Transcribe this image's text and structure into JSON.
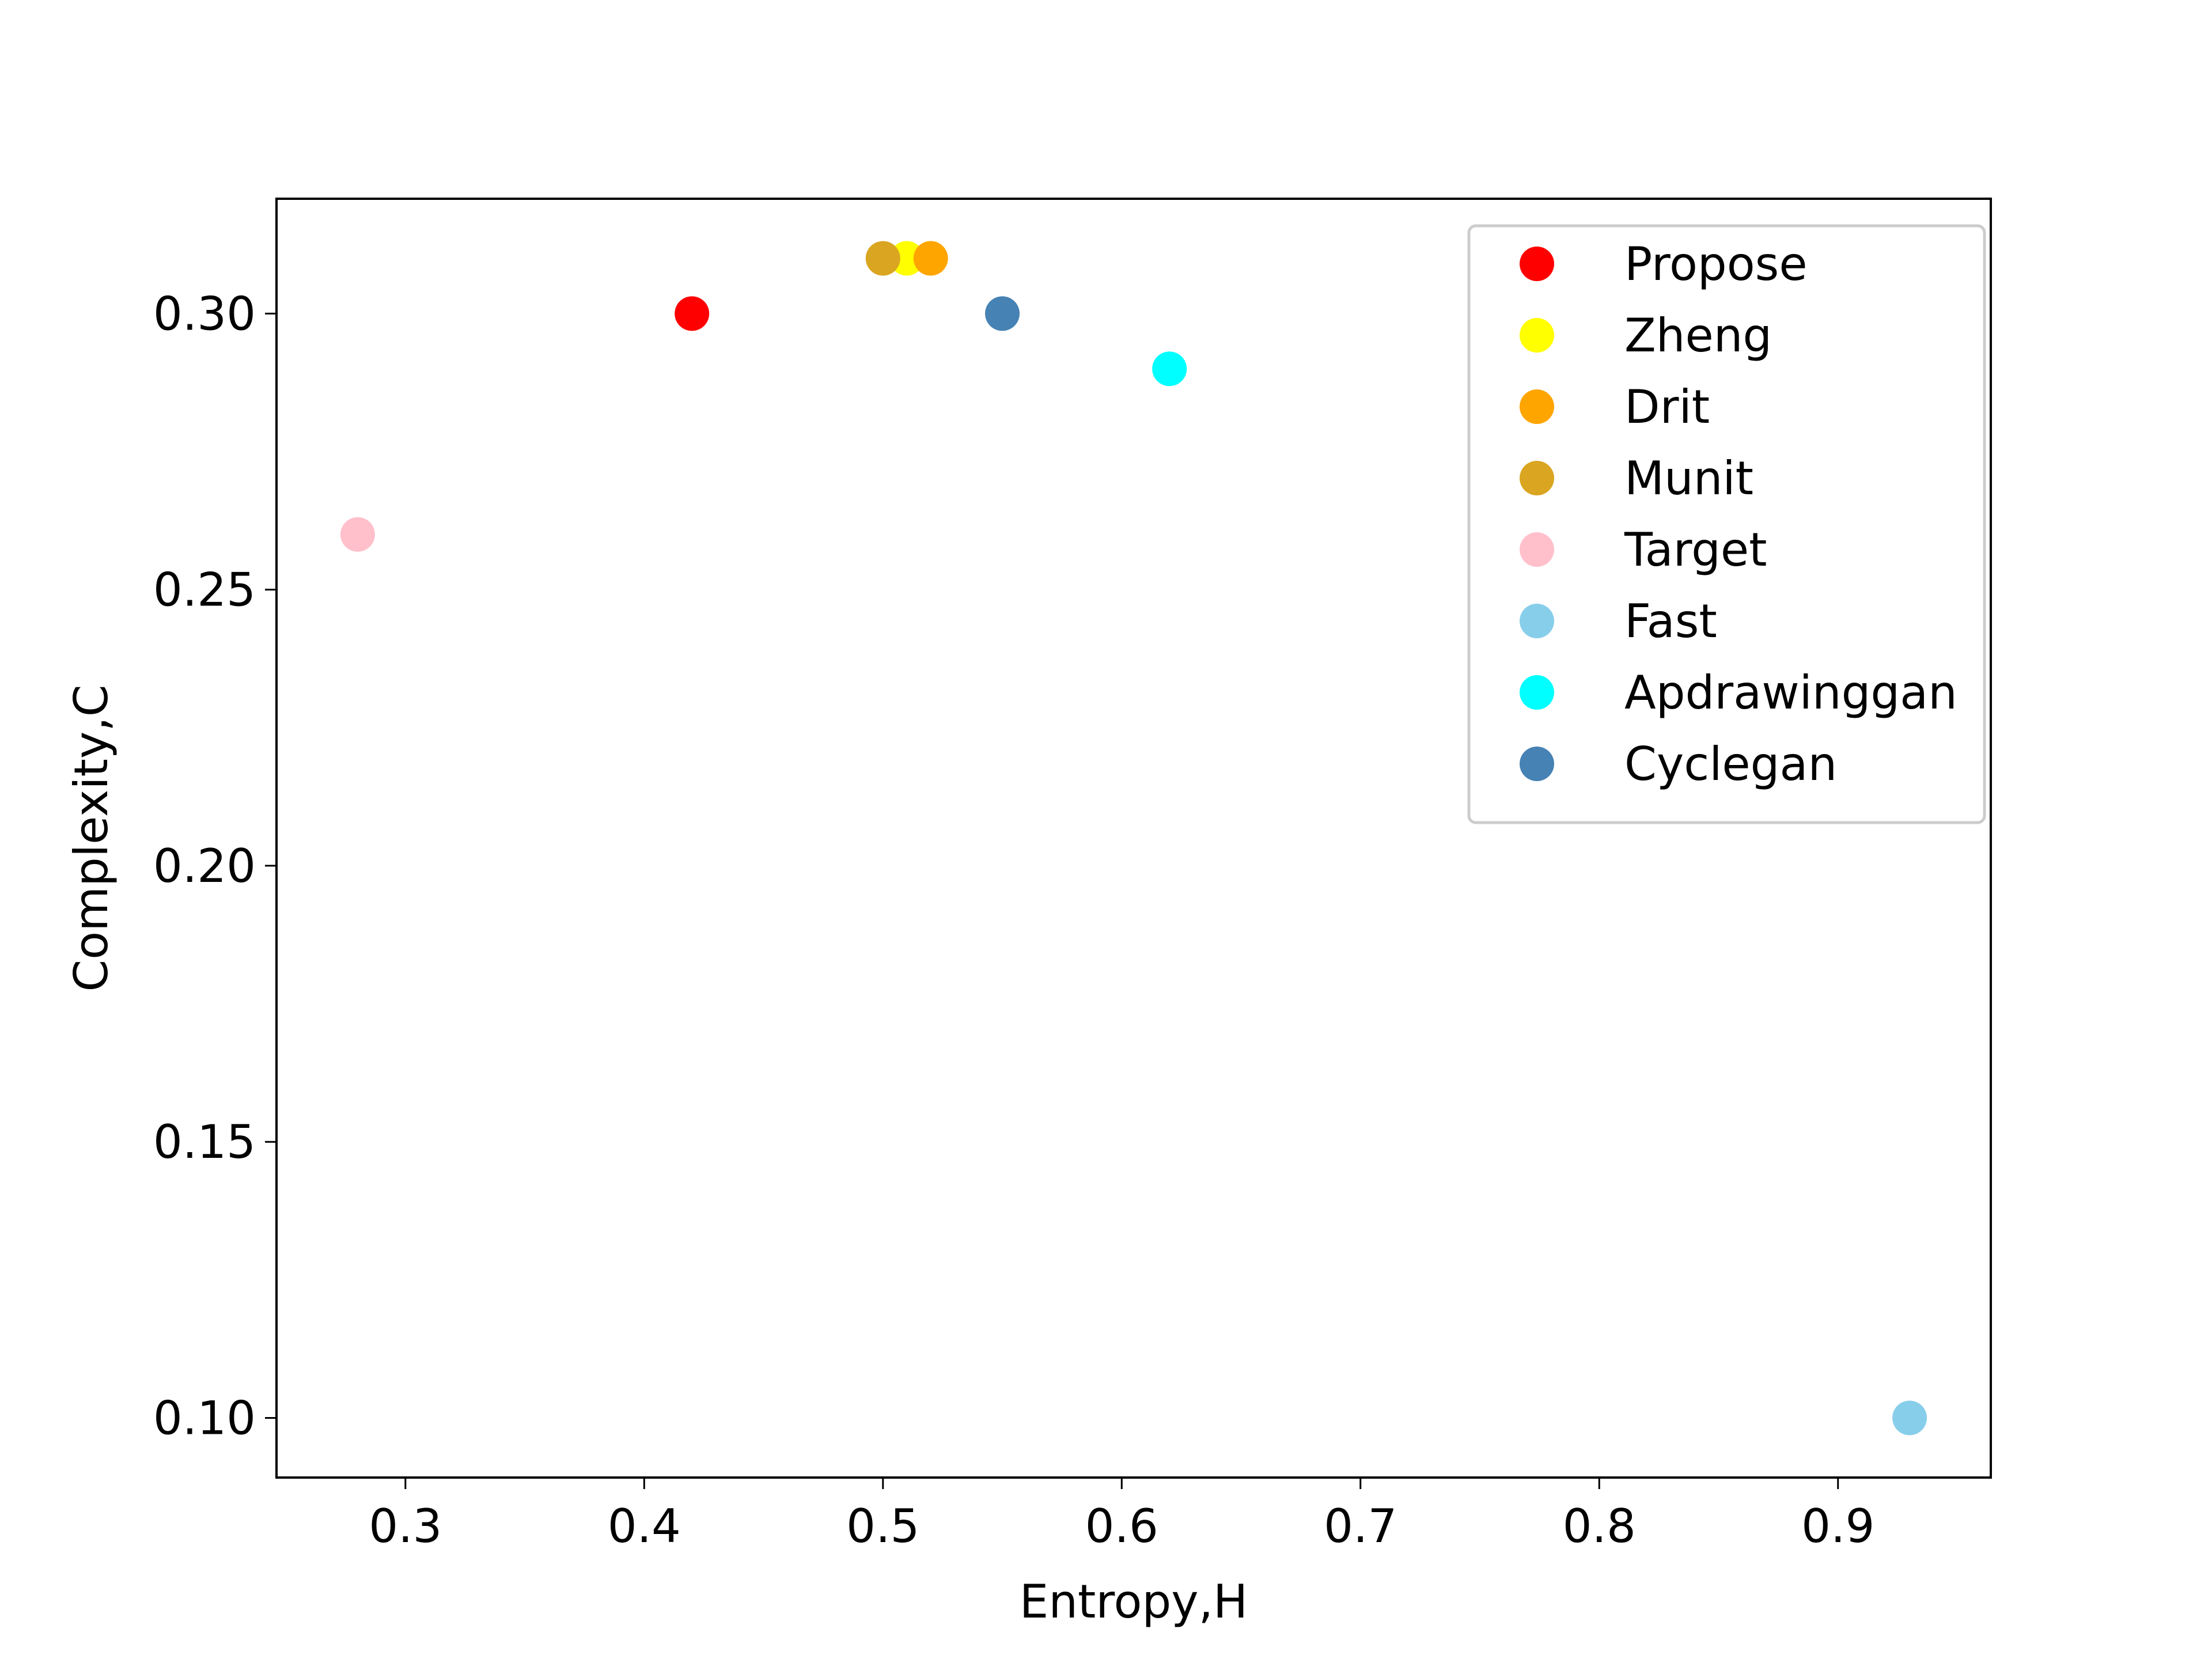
{
  "chart_data": {
    "type": "scatter",
    "title": "",
    "xlabel": "Entropy,H",
    "ylabel": "Complexity,C",
    "xlim": [
      0.246,
      0.964
    ],
    "ylim": [
      0.0892,
      0.3208
    ],
    "xticks": [
      0.3,
      0.4,
      0.5,
      0.6,
      0.7,
      0.8,
      0.9
    ],
    "xtick_labels": [
      "0.3",
      "0.4",
      "0.5",
      "0.6",
      "0.7",
      "0.8",
      "0.9"
    ],
    "yticks": [
      0.1,
      0.15,
      0.2,
      0.25,
      0.3
    ],
    "ytick_labels": [
      "0.10",
      "0.15",
      "0.20",
      "0.25",
      "0.30"
    ],
    "grid": false,
    "legend_position": "top-right",
    "series": [
      {
        "name": "Propose",
        "color": "#ff0000",
        "points": [
          {
            "x": 0.42,
            "y": 0.3
          }
        ]
      },
      {
        "name": "Zheng",
        "color": "#ffff00",
        "points": [
          {
            "x": 0.51,
            "y": 0.31
          }
        ]
      },
      {
        "name": "Drit",
        "color": "#ffa500",
        "points": [
          {
            "x": 0.52,
            "y": 0.31
          }
        ]
      },
      {
        "name": "Munit",
        "color": "#daa520",
        "points": [
          {
            "x": 0.5,
            "y": 0.31
          }
        ]
      },
      {
        "name": "Target",
        "color": "#ffc0cb",
        "points": [
          {
            "x": 0.28,
            "y": 0.26
          }
        ]
      },
      {
        "name": "Fast",
        "color": "#87ceeb",
        "points": [
          {
            "x": 0.93,
            "y": 0.1
          }
        ]
      },
      {
        "name": "Apdrawinggan",
        "color": "#00ffff",
        "points": [
          {
            "x": 0.62,
            "y": 0.29
          }
        ]
      },
      {
        "name": "Cyclegan",
        "color": "#4682b4",
        "points": [
          {
            "x": 0.55,
            "y": 0.3
          }
        ]
      }
    ]
  }
}
